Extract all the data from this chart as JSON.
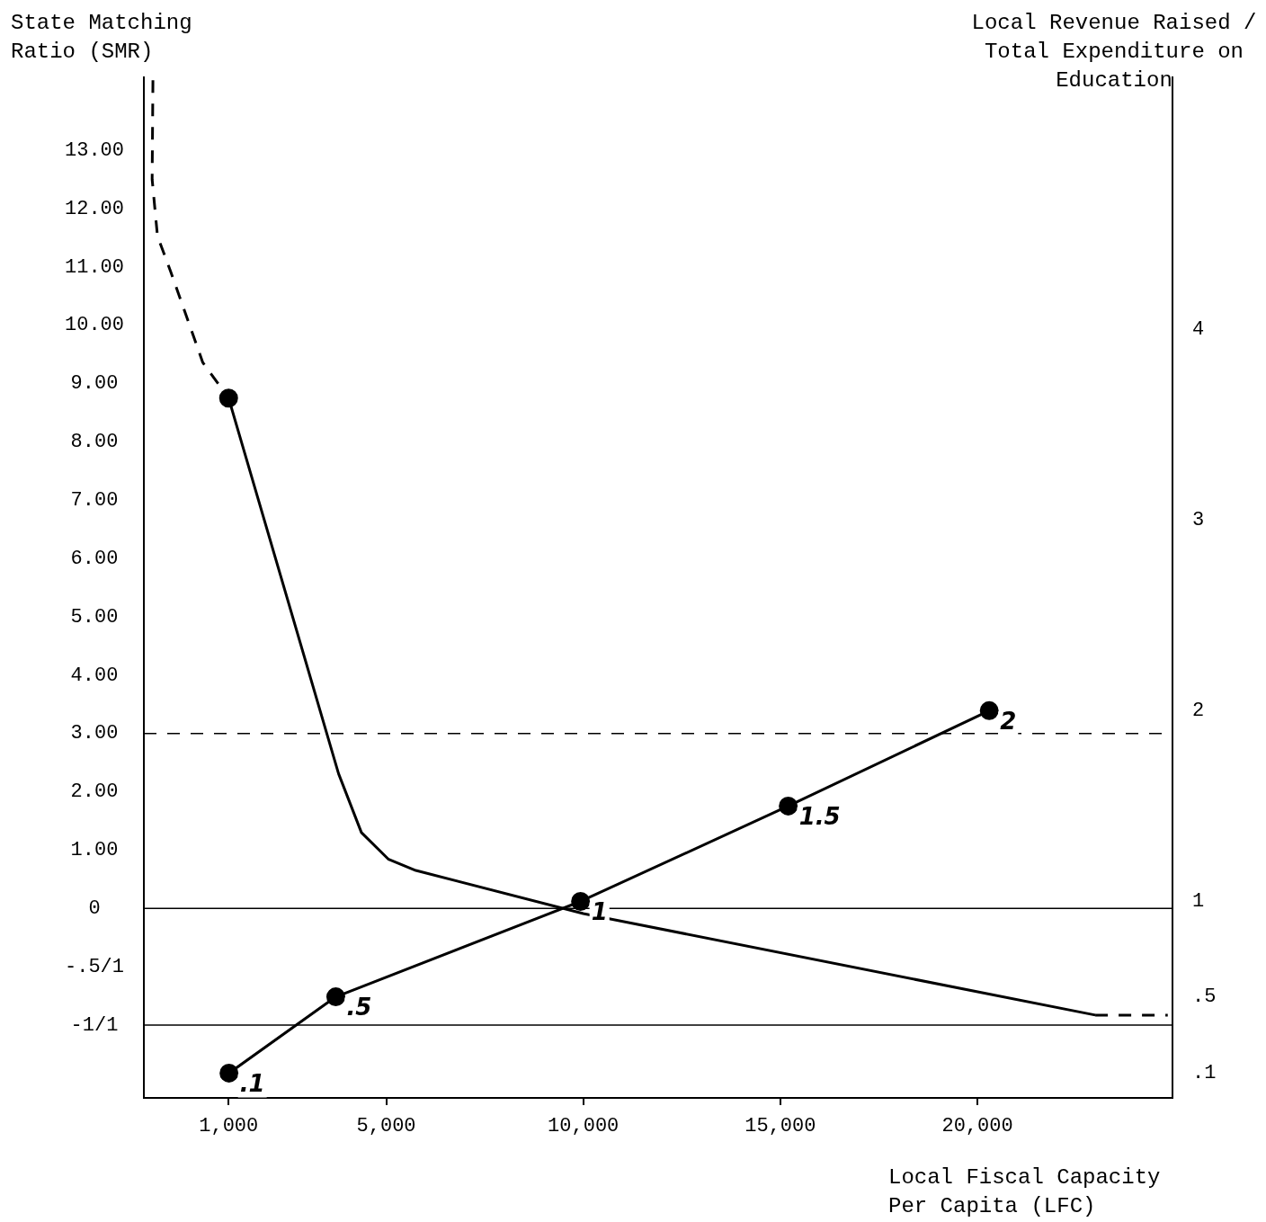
{
  "chart_data": {
    "type": "line",
    "xlabel": "Local Fiscal Capacity Per Capita (LFC)",
    "ylabel": "State Matching Ratio (SMR)",
    "y2label": "Local Revenue Raised / Total Expenditure on Education",
    "xlim": [
      -1150,
      24950
    ],
    "xticks": [
      {
        "value": 1000,
        "label": "1,000"
      },
      {
        "value": 5000,
        "label": "5,000"
      },
      {
        "value": 10000,
        "label": "10,000"
      },
      {
        "value": 15000,
        "label": "15,000"
      },
      {
        "value": 20000,
        "label": "20,000"
      }
    ],
    "ylim": [
      -3.25,
      14.25
    ],
    "yticks": [
      {
        "value": 13,
        "label": "13.00"
      },
      {
        "value": 12,
        "label": "12.00"
      },
      {
        "value": 11,
        "label": "11.00"
      },
      {
        "value": 10,
        "label": "10.00"
      },
      {
        "value": 9,
        "label": "9.00"
      },
      {
        "value": 8,
        "label": "8.00"
      },
      {
        "value": 7,
        "label": "7.00"
      },
      {
        "value": 6,
        "label": "6.00"
      },
      {
        "value": 5,
        "label": "5.00"
      },
      {
        "value": 4,
        "label": "4.00"
      },
      {
        "value": 3,
        "label": "3.00"
      },
      {
        "value": 2,
        "label": "2.00"
      },
      {
        "value": 1,
        "label": "1.00"
      },
      0,
      {
        "value": -1,
        "label": "-.5/1"
      },
      {
        "value": -2,
        "label": "-1/1"
      }
    ],
    "y2lim": [
      -0.03,
      5.32
    ],
    "y2ticks": [
      4,
      3,
      2,
      1,
      {
        "value": 0.5,
        "label": ".5"
      },
      {
        "value": 0.1,
        "label": ".1"
      }
    ],
    "grid": false,
    "legend": false,
    "series": [
      {
        "line_style": "dashed",
        "marker": "none",
        "color": "#000000",
        "x": [
          -920,
          -940,
          -805,
          -460,
          345,
          1000
        ],
        "values": [
          14.2,
          12.5,
          11.53,
          10.9,
          9.36,
          8.75
        ]
      },
      {
        "line_style": "solid",
        "marker": "none",
        "color": "#000000",
        "x": [
          1000,
          3790,
          4370,
          5060,
          5750,
          10000,
          22990
        ],
        "values": [
          8.75,
          2.31,
          1.3,
          0.84,
          0.65,
          -0.09,
          -1.83
        ]
      },
      {
        "line_style": "dashed",
        "marker": "none",
        "color": "#000000",
        "x": [
          22990,
          24830
        ],
        "values": [
          -1.83,
          -1.83
        ]
      },
      {
        "type": "scatter",
        "marker": "circle",
        "color": "#000000",
        "x": [
          1000
        ],
        "values": [
          8.75
        ]
      },
      {
        "line_style": "solid",
        "marker": "circle",
        "color": "#000000",
        "axis": "y2",
        "x": [
          1010,
          3720,
          9930,
          15200,
          20300
        ],
        "values": [
          0.1,
          0.5,
          1,
          1.5,
          2
        ],
        "value_labels": [
          ".1",
          ".5",
          "1",
          "1.5",
          "2"
        ]
      }
    ],
    "ref_lines": [
      {
        "axis": "y",
        "value": 3,
        "line_style": "dashed",
        "color": "#000000"
      },
      {
        "axis": "y",
        "value": 0,
        "line_style": "solid",
        "color": "#000000"
      },
      {
        "axis": "y",
        "value": -2,
        "line_style": "solid",
        "color": "#000000"
      }
    ]
  }
}
